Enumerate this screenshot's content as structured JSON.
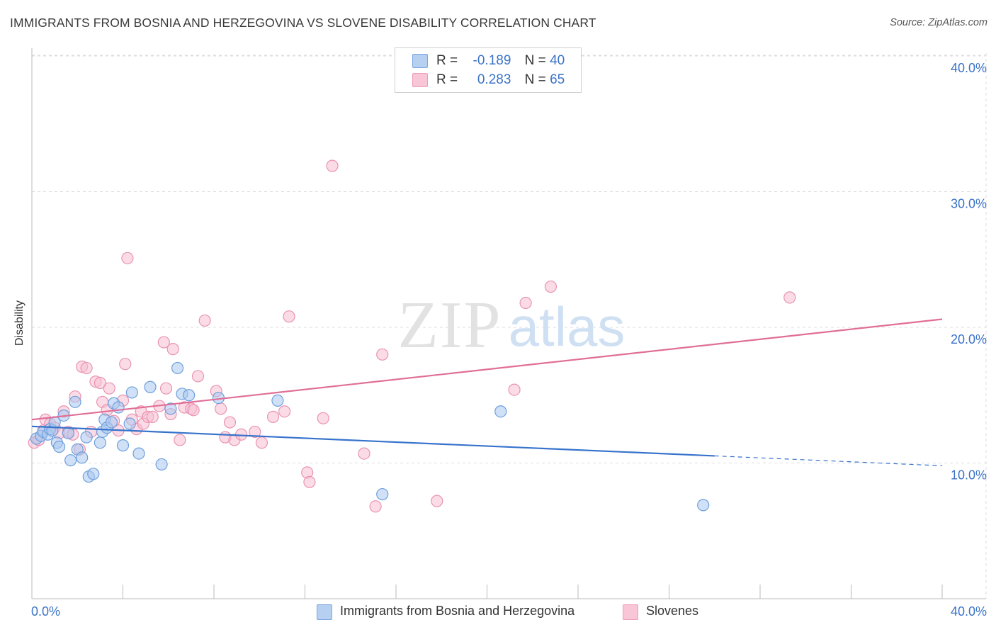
{
  "title": "IMMIGRANTS FROM BOSNIA AND HERZEGOVINA VS SLOVENE DISABILITY CORRELATION CHART",
  "source": "Source: ZipAtlas.com",
  "watermark": {
    "zip": "ZIP",
    "atlas": "atlas"
  },
  "legend": {
    "rows": [
      {
        "r_label": "R =",
        "r_value": "-0.189",
        "n_label": "N =",
        "n_value": "40"
      },
      {
        "r_label": "R =",
        "r_value": "0.283",
        "n_label": "N =",
        "n_value": "65"
      }
    ]
  },
  "colors": {
    "series1_fill": "#a9c8f0",
    "series1_stroke": "#6e9fdc",
    "series1_line": "#3773cc",
    "series2_fill": "#f7bfd2",
    "series2_stroke": "#e993b2",
    "series2_line": "#e06e97",
    "tick_label": "#3b73c8",
    "grid": "#dddddd"
  },
  "chart_data": {
    "type": "scatter",
    "title": "IMMIGRANTS FROM BOSNIA AND HERZEGOVINA VS SLOVENE DISABILITY CORRELATION CHART",
    "xlabel": "",
    "ylabel": "Disability",
    "xlim": [
      0,
      40
    ],
    "ylim": [
      0,
      41
    ],
    "x_tick_labels": [
      "0.0%",
      "40.0%"
    ],
    "y_ticks": [
      10,
      20,
      30,
      40
    ],
    "y_tick_labels": [
      "10.0%",
      "20.0%",
      "30.0%",
      "40.0%"
    ],
    "grid": true,
    "legend_position": "top-center",
    "series": [
      {
        "name": "Immigrants from Bosnia and Herzegovina",
        "R": -0.189,
        "N": 40,
        "trend": {
          "x0": 0,
          "y0": 12.7,
          "x1": 40,
          "y1": 9.8,
          "solid_until_x": 30
        },
        "points": [
          [
            0.2,
            11.8
          ],
          [
            0.4,
            12.0
          ],
          [
            0.5,
            12.3
          ],
          [
            0.7,
            12.1
          ],
          [
            0.8,
            12.5
          ],
          [
            0.9,
            12.4
          ],
          [
            1.0,
            13.0
          ],
          [
            1.1,
            11.5
          ],
          [
            1.2,
            11.2
          ],
          [
            1.4,
            13.5
          ],
          [
            1.6,
            12.2
          ],
          [
            1.7,
            10.2
          ],
          [
            1.9,
            14.5
          ],
          [
            2.0,
            11.0
          ],
          [
            2.2,
            10.4
          ],
          [
            2.4,
            11.9
          ],
          [
            2.5,
            9.0
          ],
          [
            2.7,
            9.2
          ],
          [
            3.0,
            11.5
          ],
          [
            3.1,
            12.3
          ],
          [
            3.2,
            13.2
          ],
          [
            3.3,
            12.6
          ],
          [
            3.5,
            13.0
          ],
          [
            3.6,
            14.4
          ],
          [
            3.8,
            14.1
          ],
          [
            4.0,
            11.3
          ],
          [
            4.3,
            12.9
          ],
          [
            4.4,
            15.2
          ],
          [
            4.7,
            10.7
          ],
          [
            5.2,
            15.6
          ],
          [
            5.7,
            9.9
          ],
          [
            6.1,
            14.0
          ],
          [
            6.4,
            17.0
          ],
          [
            6.6,
            15.1
          ],
          [
            6.9,
            15.0
          ],
          [
            8.2,
            14.8
          ],
          [
            10.8,
            14.6
          ],
          [
            15.4,
            7.7
          ],
          [
            20.6,
            13.8
          ],
          [
            29.5,
            6.9
          ]
        ]
      },
      {
        "name": "Slovenes",
        "R": 0.283,
        "N": 65,
        "trend": {
          "x0": 0,
          "y0": 13.2,
          "x1": 40,
          "y1": 20.6,
          "solid_until_x": 40
        },
        "points": [
          [
            0.1,
            11.5
          ],
          [
            0.3,
            11.7
          ],
          [
            0.5,
            12.4
          ],
          [
            0.6,
            13.2
          ],
          [
            0.8,
            12.9
          ],
          [
            1.0,
            12.6
          ],
          [
            1.2,
            12.2
          ],
          [
            1.4,
            13.8
          ],
          [
            1.6,
            12.3
          ],
          [
            1.8,
            12.1
          ],
          [
            1.9,
            14.9
          ],
          [
            2.1,
            11.0
          ],
          [
            2.2,
            17.1
          ],
          [
            2.4,
            17.0
          ],
          [
            2.6,
            12.3
          ],
          [
            2.8,
            16.0
          ],
          [
            3.0,
            15.9
          ],
          [
            3.1,
            14.5
          ],
          [
            3.3,
            13.9
          ],
          [
            3.4,
            15.5
          ],
          [
            3.6,
            13.1
          ],
          [
            3.8,
            12.4
          ],
          [
            4.0,
            14.6
          ],
          [
            4.1,
            17.3
          ],
          [
            4.2,
            25.1
          ],
          [
            4.4,
            13.2
          ],
          [
            4.6,
            12.5
          ],
          [
            4.8,
            13.8
          ],
          [
            4.9,
            12.9
          ],
          [
            5.1,
            13.4
          ],
          [
            5.3,
            13.4
          ],
          [
            5.6,
            14.2
          ],
          [
            5.8,
            18.9
          ],
          [
            5.9,
            15.5
          ],
          [
            6.1,
            13.6
          ],
          [
            6.2,
            18.4
          ],
          [
            6.5,
            11.7
          ],
          [
            6.7,
            14.1
          ],
          [
            7.0,
            14.0
          ],
          [
            7.1,
            13.9
          ],
          [
            7.3,
            16.4
          ],
          [
            7.6,
            20.5
          ],
          [
            8.1,
            15.3
          ],
          [
            8.3,
            14.0
          ],
          [
            8.5,
            11.9
          ],
          [
            8.7,
            13.0
          ],
          [
            8.9,
            11.7
          ],
          [
            9.2,
            12.1
          ],
          [
            9.8,
            12.3
          ],
          [
            10.1,
            11.5
          ],
          [
            10.6,
            13.4
          ],
          [
            11.1,
            13.8
          ],
          [
            11.3,
            20.8
          ],
          [
            12.1,
            9.3
          ],
          [
            12.2,
            8.6
          ],
          [
            12.8,
            13.3
          ],
          [
            13.2,
            31.9
          ],
          [
            14.6,
            10.7
          ],
          [
            15.1,
            6.8
          ],
          [
            15.4,
            18.0
          ],
          [
            17.8,
            7.2
          ],
          [
            21.2,
            15.4
          ],
          [
            21.7,
            21.8
          ],
          [
            22.8,
            23.0
          ],
          [
            33.3,
            22.2
          ]
        ]
      }
    ]
  }
}
